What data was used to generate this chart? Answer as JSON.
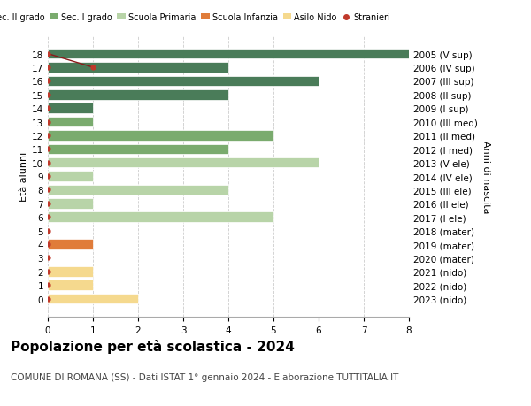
{
  "ages": [
    18,
    17,
    16,
    15,
    14,
    13,
    12,
    11,
    10,
    9,
    8,
    7,
    6,
    5,
    4,
    3,
    2,
    1,
    0
  ],
  "right_labels": [
    "2005 (V sup)",
    "2006 (IV sup)",
    "2007 (III sup)",
    "2008 (II sup)",
    "2009 (I sup)",
    "2010 (III med)",
    "2011 (II med)",
    "2012 (I med)",
    "2013 (V ele)",
    "2014 (IV ele)",
    "2015 (III ele)",
    "2016 (II ele)",
    "2017 (I ele)",
    "2018 (mater)",
    "2019 (mater)",
    "2020 (mater)",
    "2021 (nido)",
    "2022 (nido)",
    "2023 (nido)"
  ],
  "bar_values": [
    8,
    4,
    6,
    4,
    1,
    1,
    5,
    4,
    6,
    1,
    4,
    1,
    5,
    0,
    1,
    0,
    1,
    1,
    2
  ],
  "bar_colors": [
    "#4a7c59",
    "#4a7c59",
    "#4a7c59",
    "#4a7c59",
    "#4a7c59",
    "#7aab6e",
    "#7aab6e",
    "#7aab6e",
    "#b8d4a8",
    "#b8d4a8",
    "#b8d4a8",
    "#b8d4a8",
    "#b8d4a8",
    "#e07c3a",
    "#e07c3a",
    "#e07c3a",
    "#f5d98e",
    "#f5d98e",
    "#f5d98e"
  ],
  "legend_labels": [
    "Sec. II grado",
    "Sec. I grado",
    "Scuola Primaria",
    "Scuola Infanzia",
    "Asilo Nido",
    "Stranieri"
  ],
  "legend_colors": [
    "#4a7c59",
    "#7aab6e",
    "#b8d4a8",
    "#e07c3a",
    "#f5d98e",
    "#c0392b"
  ],
  "ylabel": "Età alunni",
  "right_ylabel": "Anni di nascita",
  "title": "Popolazione per età scolastica - 2024",
  "subtitle": "COMUNE DI ROMANA (SS) - Dati ISTAT 1° gennaio 2024 - Elaborazione TUTTITALIA.IT",
  "xlim": [
    0,
    8
  ],
  "xticks": [
    0,
    1,
    2,
    3,
    4,
    5,
    6,
    7,
    8
  ],
  "bg_color": "#ffffff",
  "grid_color": "#cccccc",
  "bar_height": 0.75,
  "title_fontsize": 11,
  "subtitle_fontsize": 7.5,
  "tick_fontsize": 7.5,
  "ylabel_fontsize": 8,
  "legend_fontsize": 7
}
